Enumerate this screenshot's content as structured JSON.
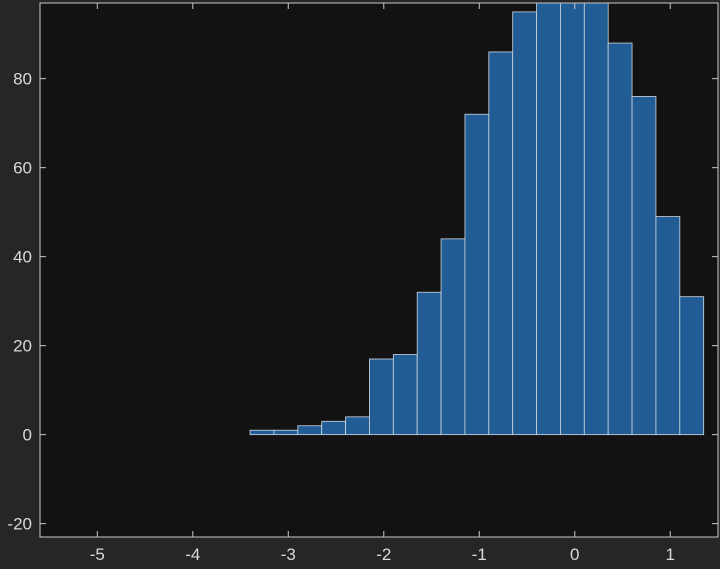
{
  "chart_data": {
    "type": "bar",
    "title": "",
    "xlabel": "",
    "ylabel": "",
    "bin_width": 0.25,
    "bins": [
      {
        "x0": -3.4,
        "x1": -3.15,
        "count": 1
      },
      {
        "x0": -3.15,
        "x1": -2.9,
        "count": 1
      },
      {
        "x0": -2.9,
        "x1": -2.65,
        "count": 2
      },
      {
        "x0": -2.65,
        "x1": -2.4,
        "count": 3
      },
      {
        "x0": -2.4,
        "x1": -2.15,
        "count": 4
      },
      {
        "x0": -2.15,
        "x1": -1.9,
        "count": 17
      },
      {
        "x0": -1.9,
        "x1": -1.65,
        "count": 18
      },
      {
        "x0": -1.65,
        "x1": -1.4,
        "count": 32
      },
      {
        "x0": -1.4,
        "x1": -1.15,
        "count": 44
      },
      {
        "x0": -1.15,
        "x1": -0.9,
        "count": 72
      },
      {
        "x0": -0.9,
        "x1": -0.65,
        "count": 86
      },
      {
        "x0": -0.65,
        "x1": -0.4,
        "count": 95
      },
      {
        "x0": -0.4,
        "x1": -0.15,
        "count": 97
      },
      {
        "x0": -0.15,
        "x1": 0.1,
        "count": 97
      },
      {
        "x0": 0.1,
        "x1": 0.35,
        "count": 97
      },
      {
        "x0": 0.35,
        "x1": 0.6,
        "count": 88
      },
      {
        "x0": 0.6,
        "x1": 0.85,
        "count": 76
      },
      {
        "x0": 0.85,
        "x1": 1.1,
        "count": 49
      },
      {
        "x0": 1.1,
        "x1": 1.35,
        "count": 31
      }
    ],
    "xlim": [
      -5.6,
      1.5
    ],
    "ylim": [
      -23,
      97
    ],
    "xticks": [
      -5,
      -4,
      -3,
      -2,
      -1,
      0,
      1
    ],
    "yticks": [
      -20,
      0,
      20,
      40,
      60,
      80
    ],
    "grid": false,
    "legend": "none",
    "colors": {
      "figure_bg": "#262626",
      "axes_bg": "#121212",
      "bar_fill": "#215d94",
      "bar_edge": "#d0d8e0",
      "axis_line": "#c8c8c8",
      "tick_text": "#d9d9d9"
    }
  }
}
